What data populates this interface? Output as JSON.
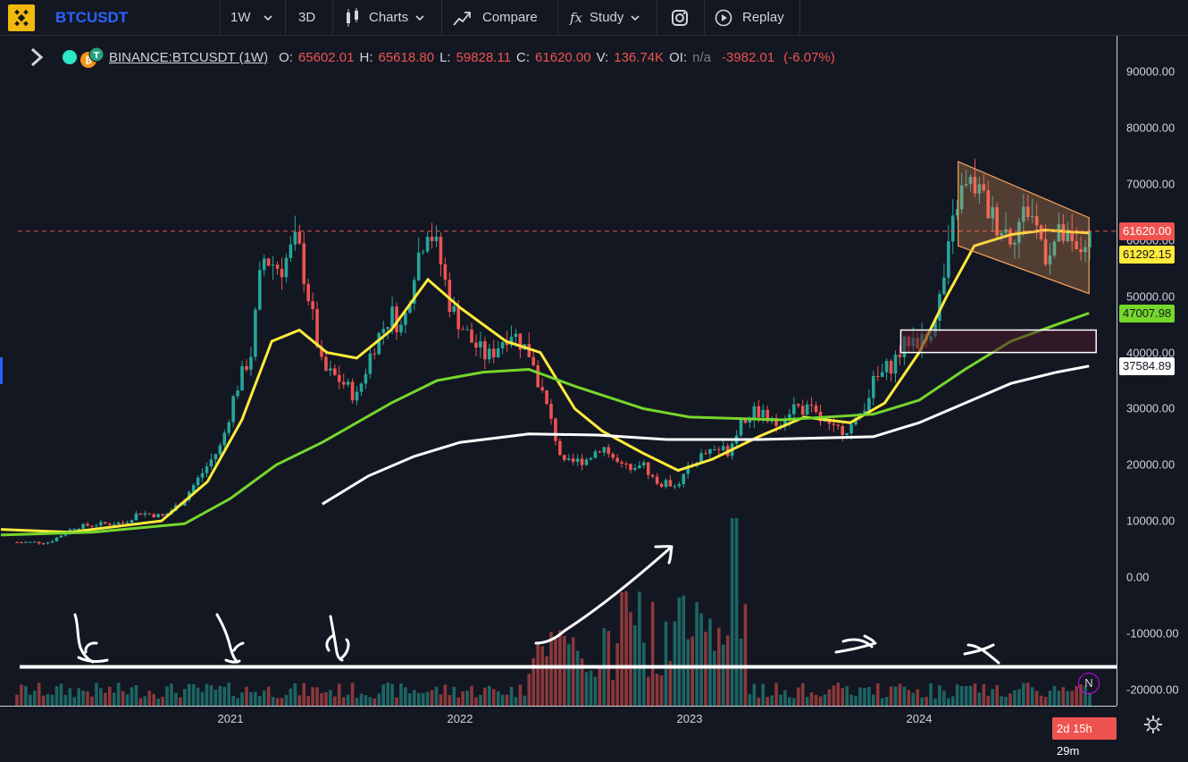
{
  "toolbar": {
    "symbol": "BTCUSDT",
    "interval": "1W",
    "mode_3d": "3D",
    "charts_label": "Charts",
    "compare_label": "Compare",
    "study_label": "Study",
    "replay_label": "Replay"
  },
  "legend": {
    "pair": "BINANCE:BTCUSDT (1W)",
    "o_key": "O:",
    "o_val": "65602.01",
    "h_key": "H:",
    "h_val": "65618.80",
    "l_key": "L:",
    "l_val": "59828.11",
    "c_key": "C:",
    "c_val": "61620.00",
    "v_key": "V:",
    "v_val": "136.74K",
    "oi_key": "OI:",
    "oi_val": "n/a",
    "change": "-3982.01",
    "change_pct": "(-6.07%)"
  },
  "price_axis": {
    "labels": [
      "90000.00",
      "80000.00",
      "70000.00",
      "60000.00",
      "50000.00",
      "40000.00",
      "30000.00",
      "20000.00",
      "10000.00",
      "0.00",
      "-10000.00",
      "-20000.00"
    ],
    "tags": [
      {
        "text": "61620.00",
        "price": 61620,
        "bg": "#ef5350",
        "fg": "#ffffff"
      },
      {
        "text": "61292.15",
        "price": 61292.15,
        "bg": "#ffeb3b",
        "fg": "#131722"
      },
      {
        "text": "47007.98",
        "price": 47007.98,
        "bg": "#76d72b",
        "fg": "#131722"
      },
      {
        "text": "37584.89",
        "price": 37584.89,
        "bg": "#ffffff",
        "fg": "#131722"
      }
    ]
  },
  "time_axis": {
    "labels": [
      "2021",
      "2022",
      "2023",
      "2024"
    ],
    "countdown": "2d 15h 29m"
  },
  "news_badge": "N",
  "colors": {
    "up": "#26a69a",
    "down": "#ef5350",
    "ma_fast": "#ffeb3b",
    "ma_mid": "#76d72b",
    "ma_slow": "#ffffff",
    "channel": "#f7a35c"
  },
  "chart_data": {
    "type": "candlestick",
    "symbol": "BINANCE:BTCUSDT",
    "interval": "1W",
    "last_close": 61620.0,
    "ma_values": [
      61292.15,
      47007.98,
      37584.89
    ],
    "price_ticks": [
      90000,
      80000,
      70000,
      60000,
      50000,
      40000,
      30000,
      20000,
      10000,
      0,
      -10000,
      -20000
    ],
    "x_ticks": [
      "2021",
      "2022",
      "2023",
      "2024"
    ],
    "weekly_closes": [
      {
        "t": 2020.21,
        "c": 6200
      },
      {
        "t": 2020.32,
        "c": 8900
      },
      {
        "t": 2020.42,
        "c": 9400
      },
      {
        "t": 2020.54,
        "c": 9700
      },
      {
        "t": 2020.6,
        "c": 11500
      },
      {
        "t": 2020.71,
        "c": 10800
      },
      {
        "t": 2020.79,
        "c": 13500
      },
      {
        "t": 2020.88,
        "c": 18700
      },
      {
        "t": 2020.96,
        "c": 23500
      },
      {
        "t": 2021.02,
        "c": 33000
      },
      {
        "t": 2021.09,
        "c": 40000
      },
      {
        "t": 2021.14,
        "c": 57000
      },
      {
        "t": 2021.22,
        "c": 55000
      },
      {
        "t": 2021.29,
        "c": 60000
      },
      {
        "t": 2021.34,
        "c": 50000
      },
      {
        "t": 2021.4,
        "c": 37000
      },
      {
        "t": 2021.48,
        "c": 35000
      },
      {
        "t": 2021.55,
        "c": 32000
      },
      {
        "t": 2021.62,
        "c": 41000
      },
      {
        "t": 2021.7,
        "c": 47000
      },
      {
        "t": 2021.75,
        "c": 44000
      },
      {
        "t": 2021.8,
        "c": 55000
      },
      {
        "t": 2021.86,
        "c": 63000
      },
      {
        "t": 2021.91,
        "c": 57000
      },
      {
        "t": 2021.96,
        "c": 48000
      },
      {
        "t": 2022.05,
        "c": 42000
      },
      {
        "t": 2022.12,
        "c": 39000
      },
      {
        "t": 2022.22,
        "c": 44000
      },
      {
        "t": 2022.3,
        "c": 40000
      },
      {
        "t": 2022.38,
        "c": 30000
      },
      {
        "t": 2022.45,
        "c": 20000
      },
      {
        "t": 2022.55,
        "c": 21000
      },
      {
        "t": 2022.62,
        "c": 23500
      },
      {
        "t": 2022.7,
        "c": 19500
      },
      {
        "t": 2022.79,
        "c": 20500
      },
      {
        "t": 2022.86,
        "c": 16500
      },
      {
        "t": 2022.95,
        "c": 16800
      },
      {
        "t": 2023.03,
        "c": 21000
      },
      {
        "t": 2023.1,
        "c": 23000
      },
      {
        "t": 2023.17,
        "c": 22500
      },
      {
        "t": 2023.22,
        "c": 28000
      },
      {
        "t": 2023.3,
        "c": 29500
      },
      {
        "t": 2023.37,
        "c": 27000
      },
      {
        "t": 2023.45,
        "c": 30500
      },
      {
        "t": 2023.53,
        "c": 29500
      },
      {
        "t": 2023.62,
        "c": 26000
      },
      {
        "t": 2023.72,
        "c": 27000
      },
      {
        "t": 2023.8,
        "c": 34500
      },
      {
        "t": 2023.88,
        "c": 38000
      },
      {
        "t": 2023.96,
        "c": 42500
      },
      {
        "t": 2024.03,
        "c": 42000
      },
      {
        "t": 2024.1,
        "c": 51000
      },
      {
        "t": 2024.17,
        "c": 68000
      },
      {
        "t": 2024.24,
        "c": 70000
      },
      {
        "t": 2024.32,
        "c": 64000
      },
      {
        "t": 2024.4,
        "c": 61000
      },
      {
        "t": 2024.48,
        "c": 66000
      },
      {
        "t": 2024.55,
        "c": 58000
      },
      {
        "t": 2024.62,
        "c": 61000
      },
      {
        "t": 2024.69,
        "c": 57000
      },
      {
        "t": 2024.74,
        "c": 61620
      }
    ],
    "moving_averages": [
      {
        "name": "",
        "color": "#ffeb3b",
        "points": [
          [
            2020.0,
            8500
          ],
          [
            2020.3,
            8000
          ],
          [
            2020.7,
            10000
          ],
          [
            2020.9,
            17000
          ],
          [
            2021.05,
            28000
          ],
          [
            2021.18,
            42000
          ],
          [
            2021.3,
            44000
          ],
          [
            2021.42,
            40000
          ],
          [
            2021.55,
            39000
          ],
          [
            2021.7,
            44000
          ],
          [
            2021.86,
            53000
          ],
          [
            2022.0,
            48000
          ],
          [
            2022.2,
            42000
          ],
          [
            2022.35,
            40000
          ],
          [
            2022.5,
            30000
          ],
          [
            2022.62,
            26000
          ],
          [
            2022.8,
            22000
          ],
          [
            2022.95,
            19000
          ],
          [
            2023.1,
            21000
          ],
          [
            2023.3,
            25000
          ],
          [
            2023.5,
            28500
          ],
          [
            2023.7,
            27500
          ],
          [
            2023.85,
            31000
          ],
          [
            2024.0,
            40000
          ],
          [
            2024.12,
            50000
          ],
          [
            2024.24,
            59000
          ],
          [
            2024.4,
            61000
          ],
          [
            2024.55,
            61800
          ],
          [
            2024.74,
            61292.15
          ]
        ]
      },
      {
        "name": "",
        "color": "#76d72b",
        "points": [
          [
            2020.0,
            7500
          ],
          [
            2020.4,
            8000
          ],
          [
            2020.8,
            9500
          ],
          [
            2021.0,
            14000
          ],
          [
            2021.2,
            20000
          ],
          [
            2021.4,
            24000
          ],
          [
            2021.7,
            31000
          ],
          [
            2021.9,
            35000
          ],
          [
            2022.1,
            36500
          ],
          [
            2022.3,
            37000
          ],
          [
            2022.5,
            34000
          ],
          [
            2022.8,
            30000
          ],
          [
            2023.0,
            28500
          ],
          [
            2023.4,
            28000
          ],
          [
            2023.8,
            29000
          ],
          [
            2024.0,
            31500
          ],
          [
            2024.2,
            37000
          ],
          [
            2024.4,
            42000
          ],
          [
            2024.6,
            45000
          ],
          [
            2024.74,
            47007.98
          ]
        ]
      },
      {
        "name": "",
        "color": "#ffffff",
        "points": [
          [
            2021.4,
            13000
          ],
          [
            2021.6,
            18000
          ],
          [
            2021.8,
            21500
          ],
          [
            2022.0,
            24000
          ],
          [
            2022.3,
            25500
          ],
          [
            2022.6,
            25300
          ],
          [
            2022.9,
            24500
          ],
          [
            2023.3,
            24500
          ],
          [
            2023.8,
            25000
          ],
          [
            2024.0,
            27500
          ],
          [
            2024.2,
            31000
          ],
          [
            2024.4,
            34500
          ],
          [
            2024.6,
            36500
          ],
          [
            2024.74,
            37584.89
          ]
        ]
      }
    ],
    "descending_channel": {
      "from": 2024.17,
      "to": 2024.74,
      "upper": [
        74000,
        64000
      ],
      "lower": [
        59000,
        50500
      ]
    },
    "support_zone": {
      "from": 2023.92,
      "to": 2024.74,
      "top": 44000,
      "bottom": 40000
    },
    "horizontal_lines": [
      {
        "price": 61620,
        "style": "dashed",
        "color": "#ef5350"
      },
      {
        "price": -16000,
        "style": "solid",
        "color": "#ffffff"
      }
    ]
  }
}
